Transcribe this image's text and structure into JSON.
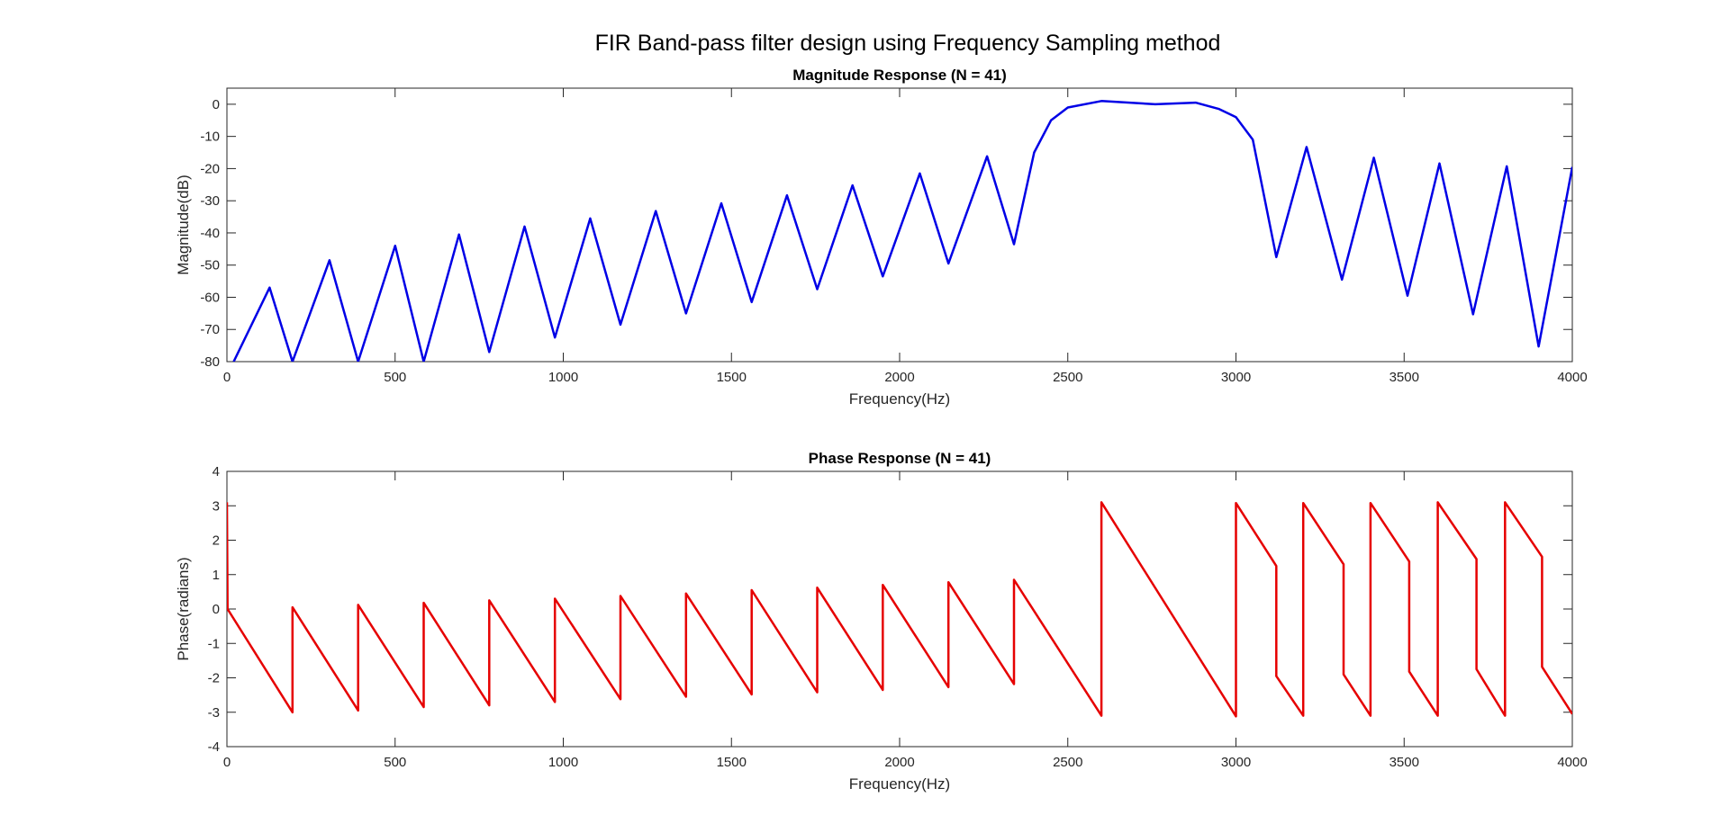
{
  "figure": {
    "suptitle": "FIR Band-pass filter design using Frequency Sampling method"
  },
  "chart_data": [
    {
      "type": "line",
      "title": "Magnitude Response (N = 41)",
      "xlabel": "Frequency(Hz)",
      "ylabel": "Magnitude(dB)",
      "xlim": [
        0,
        4000
      ],
      "ylim": [
        -80,
        5
      ],
      "xticks": [
        0,
        500,
        1000,
        1500,
        2000,
        2500,
        3000,
        3500,
        4000
      ],
      "xtick_labels": [
        "0",
        "500",
        "1000",
        "1500",
        "2000",
        "2500",
        "3000",
        "3500",
        "4000"
      ],
      "yticks": [
        0,
        -10,
        -20,
        -30,
        -40,
        -50,
        -60,
        -70,
        -80
      ],
      "ytick_labels": [
        "0",
        "-10",
        "-20",
        "-30",
        "-40",
        "-50",
        "-60",
        "-70",
        "-80"
      ],
      "grid": false,
      "series": [
        {
          "color": "#0000e6",
          "x": [
            20,
            127,
            195,
            305,
            390,
            500,
            585,
            690,
            780,
            885,
            975,
            1080,
            1170,
            1275,
            1365,
            1470,
            1560,
            1665,
            1755,
            1860,
            1950,
            2060,
            2145,
            2260,
            2340,
            2400,
            2450,
            2500,
            2600,
            2760,
            2880,
            2950,
            3000,
            3050,
            3120,
            3210,
            3315,
            3410,
            3510,
            3605,
            3705,
            3805,
            3900,
            4000
          ],
          "y": [
            -80,
            -57,
            -80,
            -48.5,
            -80,
            -44,
            -80,
            -40.5,
            -77,
            -38,
            -72.5,
            -35.5,
            -68.5,
            -33.2,
            -65,
            -30.8,
            -61.5,
            -28.3,
            -57.5,
            -25.2,
            -53.5,
            -21.5,
            -49.5,
            -16.2,
            -43.5,
            -15,
            -5,
            -1,
            1,
            0,
            0.5,
            -1.5,
            -4,
            -11,
            -47.5,
            -13.3,
            -54.5,
            -16.6,
            -59.5,
            -18.4,
            -65.3,
            -19.3,
            -75.3,
            -19.5
          ]
        }
      ]
    },
    {
      "type": "line",
      "title": "Phase Response (N = 41)",
      "xlabel": "Frequency(Hz)",
      "ylabel": "Phase(radians)",
      "xlim": [
        0,
        4000
      ],
      "ylim": [
        -4,
        4
      ],
      "xticks": [
        0,
        500,
        1000,
        1500,
        2000,
        2500,
        3000,
        3500,
        4000
      ],
      "xtick_labels": [
        "0",
        "500",
        "1000",
        "1500",
        "2000",
        "2500",
        "3000",
        "3500",
        "4000"
      ],
      "yticks": [
        4,
        3,
        2,
        1,
        0,
        -1,
        -2,
        -3,
        -4
      ],
      "ytick_labels": [
        "4",
        "3",
        "2",
        "1",
        "0",
        "-1",
        "-2",
        "-3",
        "-4"
      ],
      "grid": false,
      "series": [
        {
          "color": "#e60000",
          "x": [
            0,
            2,
            195,
            195,
            390,
            390,
            585,
            585,
            780,
            780,
            975,
            975,
            1170,
            1170,
            1365,
            1365,
            1560,
            1560,
            1755,
            1755,
            1950,
            1950,
            2145,
            2145,
            2340,
            2340,
            2600,
            2600,
            3000,
            3000,
            3120,
            3120,
            3200,
            3200,
            3320,
            3320,
            3400,
            3400,
            3515,
            3515,
            3600,
            3600,
            3715,
            3715,
            3800,
            3800,
            3910,
            3910,
            4000
          ],
          "y": [
            3.1,
            0,
            -3.0,
            0.05,
            -2.95,
            0.12,
            -2.85,
            0.18,
            -2.8,
            0.25,
            -2.7,
            0.3,
            -2.62,
            0.38,
            -2.55,
            0.45,
            -2.48,
            0.55,
            -2.42,
            0.62,
            -2.35,
            0.7,
            -2.27,
            0.78,
            -2.18,
            0.85,
            -3.1,
            3.1,
            -3.12,
            3.08,
            1.25,
            -1.95,
            -3.1,
            3.08,
            1.3,
            -1.9,
            -3.1,
            3.08,
            1.38,
            -1.82,
            -3.1,
            3.1,
            1.45,
            -1.75,
            -3.1,
            3.1,
            1.52,
            -1.68,
            -3.05
          ]
        }
      ]
    }
  ]
}
